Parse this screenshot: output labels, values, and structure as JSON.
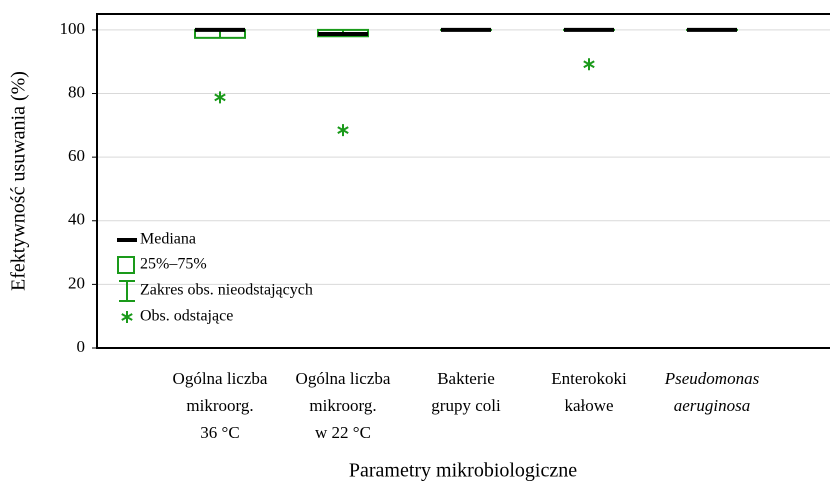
{
  "chart_data": {
    "type": "box",
    "x_label": "Parametry mikrobiologiczne",
    "y_label": "Efektywność usuwania (%)",
    "categories": [
      [
        "Ogólna liczba",
        "mikroorg.",
        "36 °C"
      ],
      [
        "Ogólna liczba",
        "mikroorg.",
        "w 22 °C"
      ],
      [
        "Bakterie",
        "grupy coli"
      ],
      [
        "Enterokoki",
        "kałowe"
      ],
      [
        "Pseudomonas",
        "aeruginosa"
      ]
    ],
    "italic_categories": [
      false,
      false,
      false,
      false,
      true
    ],
    "series": [
      {
        "color": "#1a9a1a",
        "median_color": "#000000",
        "min": [
          97.5,
          98,
          100,
          100,
          100
        ],
        "q1": [
          97.5,
          98,
          100,
          100,
          100
        ],
        "median": [
          100,
          98.7,
          100,
          100,
          100
        ],
        "q3": [
          100,
          100,
          100,
          100,
          100
        ],
        "max": [
          100,
          100,
          100,
          100,
          100
        ],
        "outliers": [
          [
            78.8
          ],
          [
            68.5
          ],
          [],
          [
            89.2
          ],
          []
        ]
      }
    ],
    "legend": {
      "position": "lower left",
      "entries": [
        "Mediana",
        "25%–75%",
        "Zakres obs. nieodstających",
        "Obs. odstające"
      ]
    },
    "ylim": [
      0,
      105
    ],
    "yticks": [
      0,
      20,
      40,
      60,
      80,
      100
    ],
    "grid": true
  }
}
